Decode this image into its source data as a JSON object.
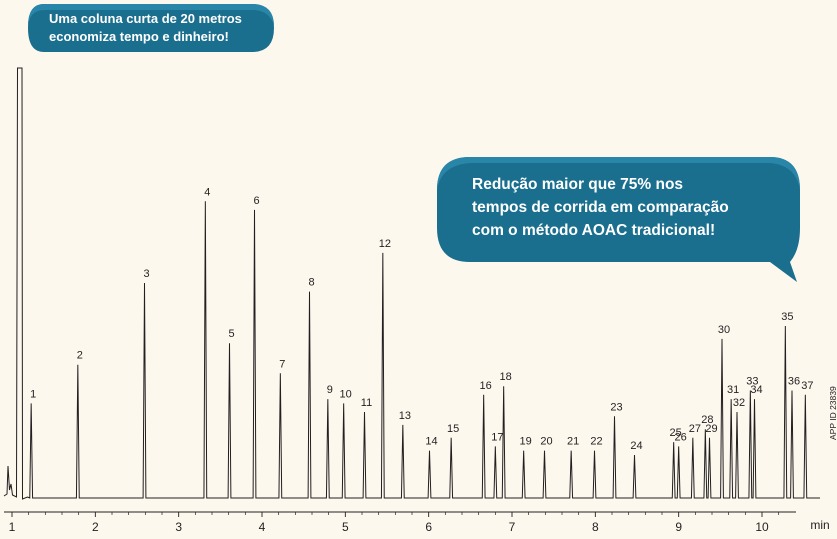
{
  "callouts": {
    "short_column_line1": "Uma coluna curta de 20 metros",
    "short_column_line2": "economiza tempo e dinheiro!",
    "reduction_line1": "Redução maior que 75% nos",
    "reduction_line2": "tempos de corrida em comparação",
    "reduction_line3": "com o método AOAC tradicional!"
  },
  "app_id": "APP ID 23839",
  "colors": {
    "background": "#fdf8ee",
    "trace": "#231f20",
    "callout_fill": "#1a6f8f",
    "callout_fill_light": "#2a86a8"
  },
  "chart_data": {
    "type": "line",
    "title": "",
    "xlabel": "min",
    "ylabel": "",
    "xlim": [
      0.95,
      10.75
    ],
    "ylim": [
      0,
      100
    ],
    "x_ticks": [
      1,
      2,
      3,
      4,
      5,
      6,
      7,
      8,
      9,
      10
    ],
    "x_tick_labels": [
      "1",
      "2",
      "3",
      "4",
      "5",
      "6",
      "7",
      "8",
      "9",
      "10"
    ],
    "x_unit_label": "min",
    "grid": false,
    "solvent_peak": {
      "x": 1.09,
      "y": 100
    },
    "peaks": [
      {
        "label": "1",
        "x": 1.23,
        "y": 22
      },
      {
        "label": "2",
        "x": 1.79,
        "y": 31
      },
      {
        "label": "3",
        "x": 2.59,
        "y": 50
      },
      {
        "label": "4",
        "x": 3.32,
        "y": 69
      },
      {
        "label": "5",
        "x": 3.61,
        "y": 36
      },
      {
        "label": "6",
        "x": 3.91,
        "y": 67
      },
      {
        "label": "7",
        "x": 4.22,
        "y": 29
      },
      {
        "label": "8",
        "x": 4.57,
        "y": 48
      },
      {
        "label": "9",
        "x": 4.79,
        "y": 23
      },
      {
        "label": "10",
        "x": 4.98,
        "y": 22
      },
      {
        "label": "11",
        "x": 5.23,
        "y": 20
      },
      {
        "label": "12",
        "x": 5.45,
        "y": 57
      },
      {
        "label": "13",
        "x": 5.69,
        "y": 17
      },
      {
        "label": "14",
        "x": 6.01,
        "y": 11
      },
      {
        "label": "15",
        "x": 6.27,
        "y": 14
      },
      {
        "label": "16",
        "x": 6.66,
        "y": 24
      },
      {
        "label": "17",
        "x": 6.8,
        "y": 12
      },
      {
        "label": "18",
        "x": 6.9,
        "y": 26
      },
      {
        "label": "19",
        "x": 7.14,
        "y": 11
      },
      {
        "label": "20",
        "x": 7.39,
        "y": 11
      },
      {
        "label": "21",
        "x": 7.71,
        "y": 11
      },
      {
        "label": "22",
        "x": 7.99,
        "y": 11
      },
      {
        "label": "23",
        "x": 8.23,
        "y": 19
      },
      {
        "label": "24",
        "x": 8.47,
        "y": 10
      },
      {
        "label": "25",
        "x": 8.94,
        "y": 13
      },
      {
        "label": "26",
        "x": 9.0,
        "y": 12
      },
      {
        "label": "27",
        "x": 9.17,
        "y": 14
      },
      {
        "label": "28",
        "x": 9.32,
        "y": 16
      },
      {
        "label": "29",
        "x": 9.37,
        "y": 14
      },
      {
        "label": "30",
        "x": 9.52,
        "y": 37
      },
      {
        "label": "31",
        "x": 9.63,
        "y": 23
      },
      {
        "label": "32",
        "x": 9.7,
        "y": 20
      },
      {
        "label": "33",
        "x": 9.86,
        "y": 25
      },
      {
        "label": "34",
        "x": 9.91,
        "y": 23
      },
      {
        "label": "35",
        "x": 10.28,
        "y": 40
      },
      {
        "label": "36",
        "x": 10.36,
        "y": 25
      },
      {
        "label": "37",
        "x": 10.52,
        "y": 24
      }
    ]
  }
}
